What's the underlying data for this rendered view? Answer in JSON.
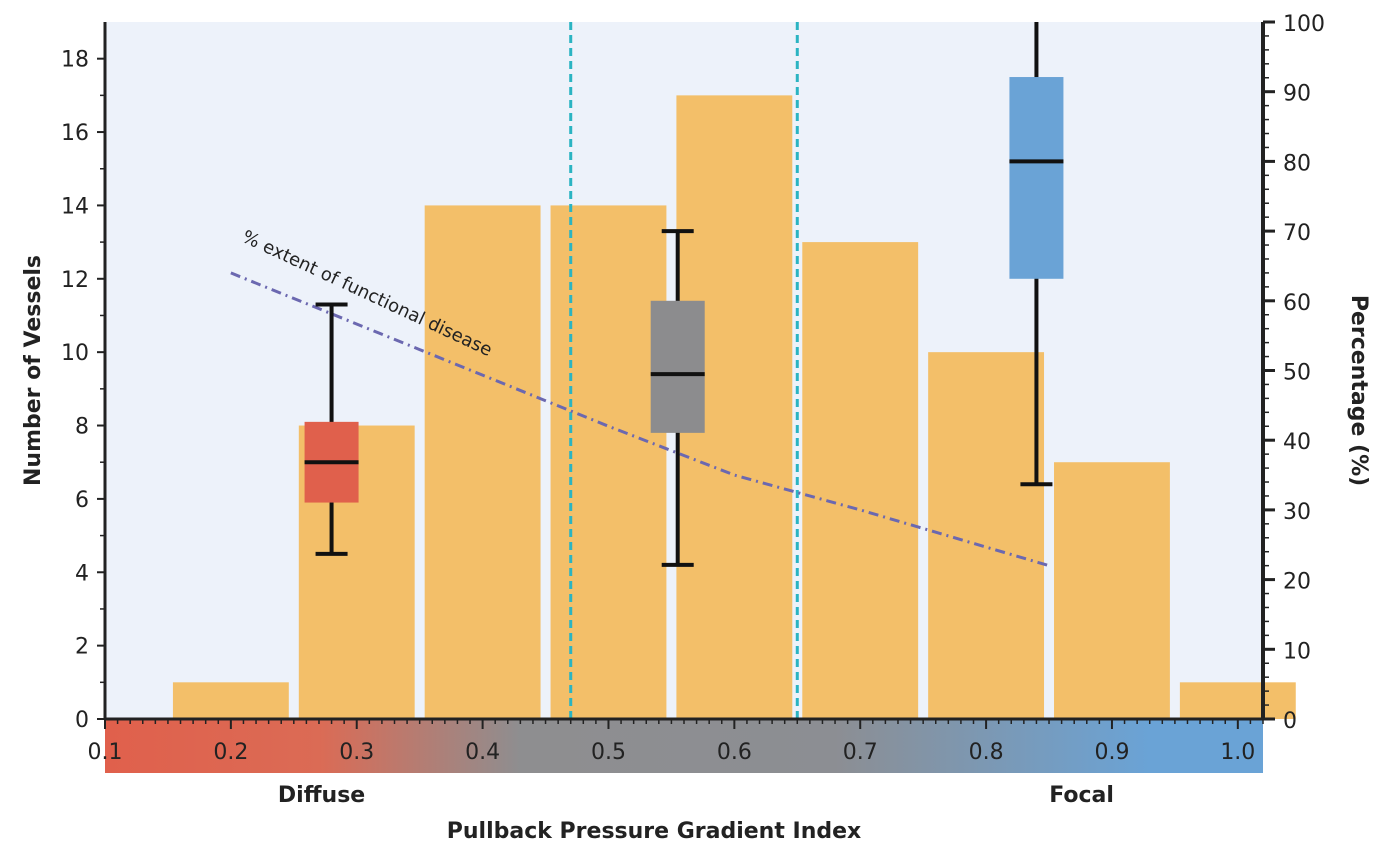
{
  "chart_data": {
    "type": "bar",
    "title": "",
    "xlabel": "Pullback Pressure Gradient Index",
    "ylabel": "Number of Vessels",
    "y2label": "Percentage (%)",
    "xlim": [
      0.1,
      1.02
    ],
    "ylim": [
      0,
      19
    ],
    "y2lim": [
      0,
      100
    ],
    "x_ticks": [
      "0.1",
      "0.2",
      "0.3",
      "0.4",
      "0.5",
      "0.6",
      "0.7",
      "0.8",
      "0.9",
      "1.0"
    ],
    "y_ticks": [
      "0",
      "2",
      "4",
      "6",
      "8",
      "10",
      "12",
      "14",
      "16",
      "18"
    ],
    "y2_ticks": [
      "0",
      "10",
      "20",
      "30",
      "40",
      "50",
      "60",
      "70",
      "80",
      "90",
      "100"
    ],
    "grid": false,
    "bars": {
      "bin_width": 0.1,
      "x": [
        0.2,
        0.3,
        0.4,
        0.5,
        0.6,
        0.7,
        0.8,
        0.9,
        1.0
      ],
      "values": [
        1,
        8,
        14,
        14,
        17,
        13,
        10,
        7,
        1
      ],
      "color": "#F3BF69"
    },
    "thresholds": {
      "x": [
        0.47,
        0.65
      ],
      "color": "#2BB4C2",
      "style": "dashed"
    },
    "boxplots": [
      {
        "x": 0.28,
        "min": 4.5,
        "q1": 5.9,
        "median": 7.0,
        "q3": 8.1,
        "max": 11.3,
        "color": "#E0604C"
      },
      {
        "x": 0.555,
        "min": 4.2,
        "q1": 7.8,
        "median": 9.4,
        "q3": 11.4,
        "max": 13.3,
        "color": "#8C8C8E"
      },
      {
        "x": 0.84,
        "min": 6.4,
        "q1": 12.0,
        "median": 15.2,
        "q3": 17.5,
        "max": 19,
        "color": "#6AA3D6"
      }
    ],
    "line": {
      "name": "% extent of functional disease",
      "axis": "y2",
      "style": "dash-dot",
      "color": "#6B68B0",
      "x": [
        0.2,
        0.35,
        0.5,
        0.6,
        0.7,
        0.85
      ],
      "values": [
        64,
        53,
        42,
        35,
        30,
        22
      ]
    },
    "color_scale": {
      "stops": [
        {
          "x": 0.1,
          "color": "#E0604C"
        },
        {
          "x": 0.27,
          "color": "#DB6B55"
        },
        {
          "x": 0.43,
          "color": "#8E8E90"
        },
        {
          "x": 0.68,
          "color": "#8C8E93"
        },
        {
          "x": 0.93,
          "color": "#6AA3D6"
        },
        {
          "x": 1.02,
          "color": "#6AA3D6"
        }
      ]
    },
    "region_labels": [
      {
        "text": "Diffuse",
        "x": 0.28
      },
      {
        "text": "Focal",
        "x": 0.86
      }
    ]
  },
  "colors": {
    "plot_background": "#EDF2FA",
    "axis": "#222222"
  }
}
